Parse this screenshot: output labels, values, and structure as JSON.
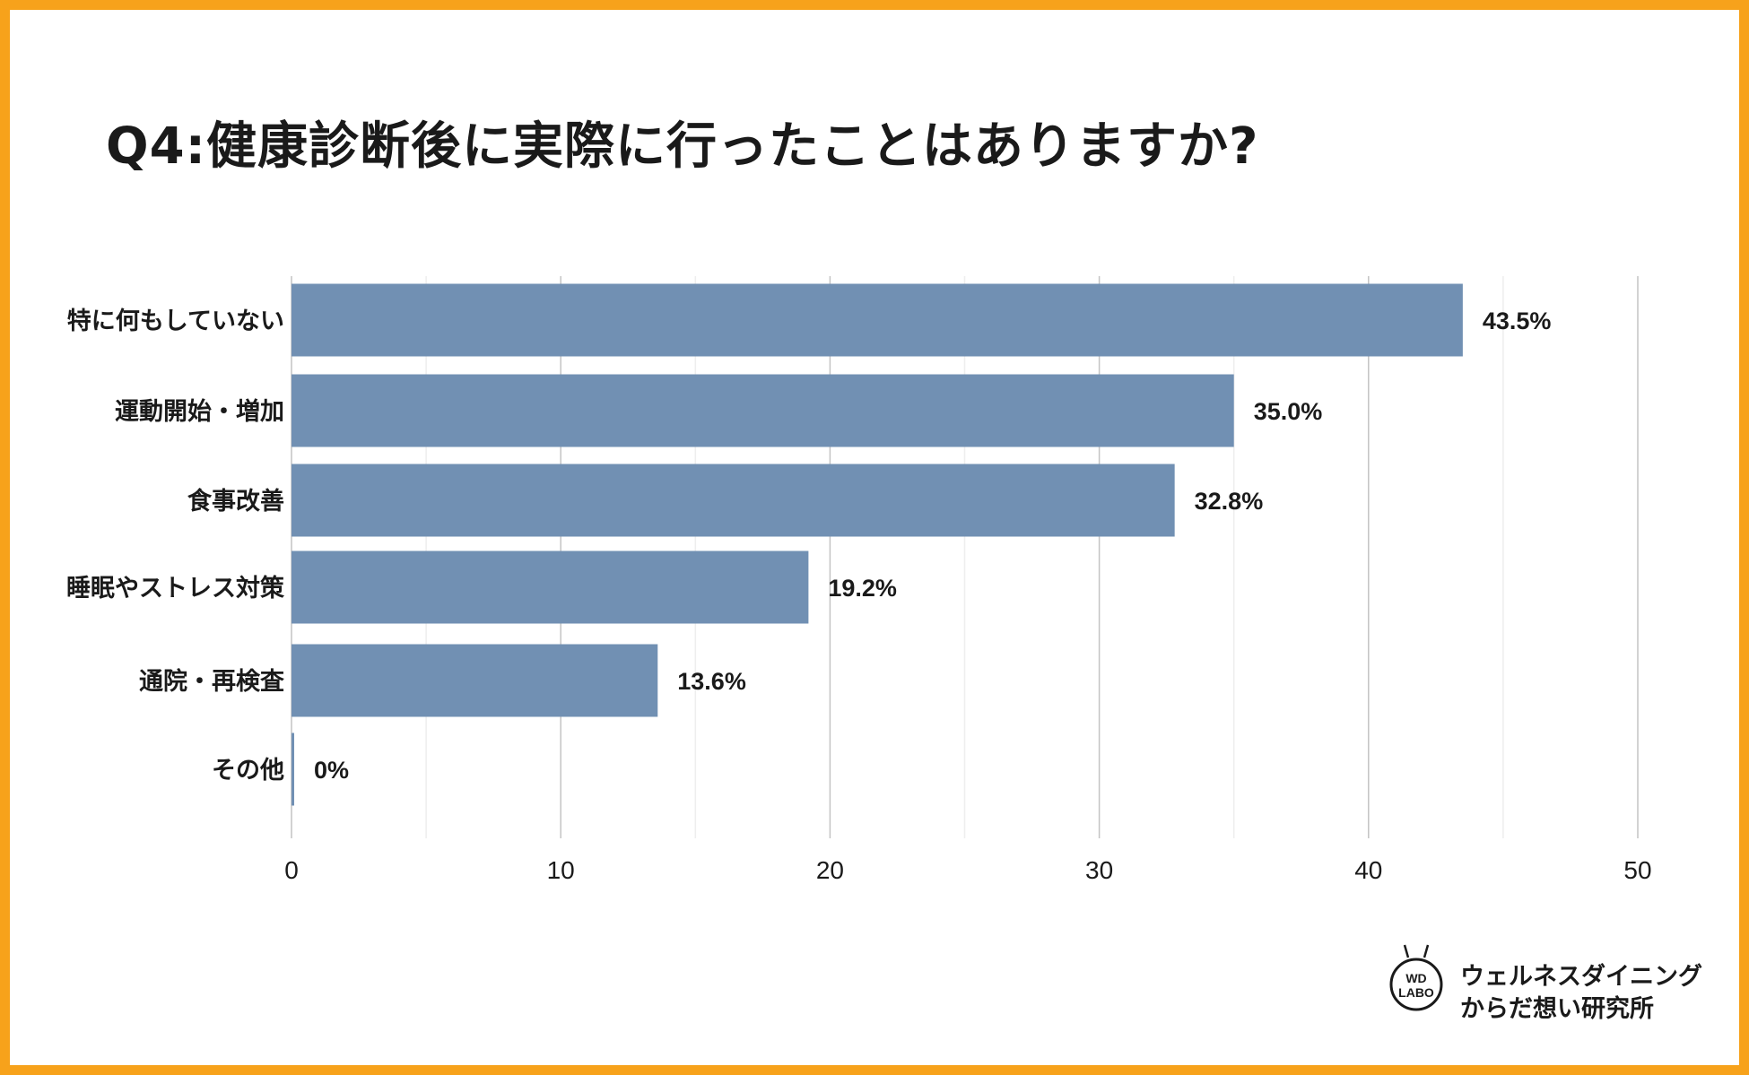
{
  "title": "Q4:健康診断後に実際に行ったことはありますか?",
  "chart_data": {
    "type": "bar",
    "orientation": "horizontal",
    "categories": [
      "特に何もしていない",
      "運動開始・増加",
      "食事改善",
      "睡眠やストレス対策",
      "通院・再検査",
      "その他"
    ],
    "values": [
      43.5,
      35.0,
      32.8,
      19.2,
      13.6,
      0
    ],
    "value_labels": [
      "43.5%",
      "35.0%",
      "32.8%",
      "19.2%",
      "13.6%",
      "0%"
    ],
    "xlim": [
      0,
      50
    ],
    "xticks": [
      0,
      10,
      20,
      30,
      40,
      50
    ],
    "grid": true,
    "bar_color": "#7190B3"
  },
  "brand": {
    "logo_line1": "WD",
    "logo_line2": "LABO",
    "line1": "ウェルネスダイニング",
    "line2": "からだ想い研究所"
  },
  "colors": {
    "border": "#F7A21B",
    "bar": "#7190B3"
  }
}
